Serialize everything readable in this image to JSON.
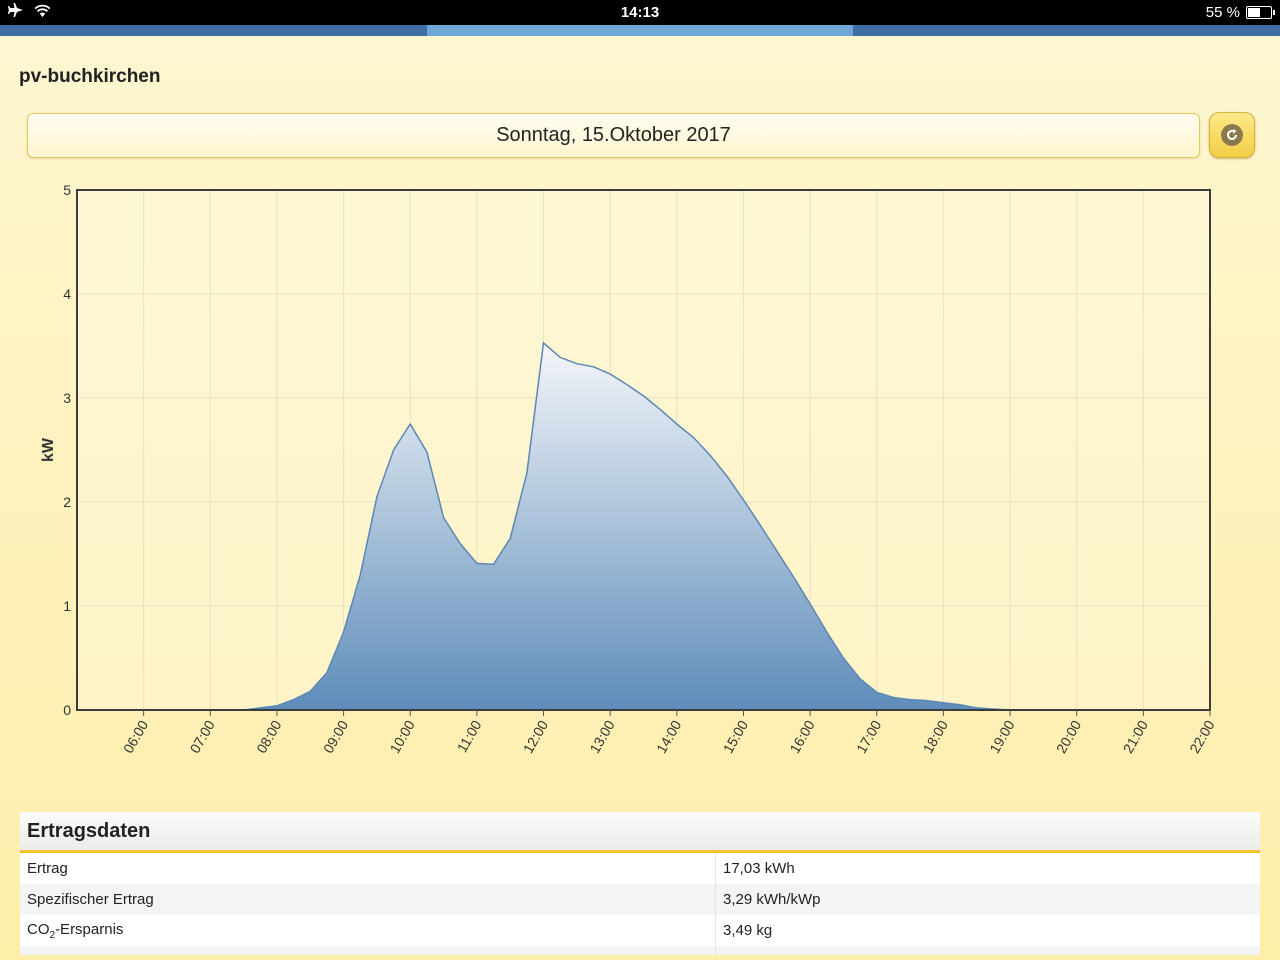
{
  "status_bar": {
    "time": "14:13",
    "battery_text": "55 %",
    "battery_level": 0.55
  },
  "tabs": {
    "count": 3,
    "active_index": 1
  },
  "header": {
    "site_title": "pv-buchkirchen"
  },
  "date_selector": {
    "value": "Sonntag, 15.Oktober 2017"
  },
  "refresh_button": {
    "icon": "refresh-icon"
  },
  "colors": {
    "series_stroke": "#5b87b5",
    "fill_top": "#f4f6f9",
    "fill_bottom": "#5e8cba",
    "accent": "#f2c12e"
  },
  "chart_data": {
    "type": "area",
    "ylabel": "kW",
    "xlabel": "",
    "ylim": [
      0,
      5
    ],
    "y_ticks": [
      "0",
      "1",
      "2",
      "3",
      "4",
      "5"
    ],
    "x_range": [
      "05:00",
      "22:00"
    ],
    "x_ticks": [
      "06:00",
      "07:00",
      "08:00",
      "09:00",
      "10:00",
      "11:00",
      "12:00",
      "13:00",
      "14:00",
      "15:00",
      "16:00",
      "17:00",
      "18:00",
      "19:00",
      "20:00",
      "21:00",
      "22:00"
    ],
    "grid": true,
    "series": [
      {
        "points": [
          [
            "05:00",
            0
          ],
          [
            "07:30",
            0
          ],
          [
            "07:45",
            0.02
          ],
          [
            "08:00",
            0.04
          ],
          [
            "08:15",
            0.1
          ],
          [
            "08:30",
            0.18
          ],
          [
            "08:45",
            0.36
          ],
          [
            "09:00",
            0.75
          ],
          [
            "09:15",
            1.3
          ],
          [
            "09:30",
            2.05
          ],
          [
            "09:45",
            2.5
          ],
          [
            "10:00",
            2.75
          ],
          [
            "10:15",
            2.48
          ],
          [
            "10:30",
            1.85
          ],
          [
            "10:45",
            1.6
          ],
          [
            "11:00",
            1.41
          ],
          [
            "11:15",
            1.4
          ],
          [
            "11:30",
            1.65
          ],
          [
            "11:45",
            2.28
          ],
          [
            "12:00",
            3.53
          ],
          [
            "12:15",
            3.39
          ],
          [
            "12:30",
            3.33
          ],
          [
            "12:45",
            3.3
          ],
          [
            "13:00",
            3.23
          ],
          [
            "13:15",
            3.13
          ],
          [
            "13:30",
            3.02
          ],
          [
            "13:45",
            2.89
          ],
          [
            "14:00",
            2.75
          ],
          [
            "14:15",
            2.62
          ],
          [
            "14:30",
            2.45
          ],
          [
            "14:45",
            2.25
          ],
          [
            "15:00",
            2.02
          ],
          [
            "15:15",
            1.78
          ],
          [
            "15:30",
            1.53
          ],
          [
            "15:45",
            1.28
          ],
          [
            "16:00",
            1.02
          ],
          [
            "16:15",
            0.75
          ],
          [
            "16:30",
            0.5
          ],
          [
            "16:45",
            0.3
          ],
          [
            "17:00",
            0.17
          ],
          [
            "17:15",
            0.12
          ],
          [
            "17:30",
            0.1
          ],
          [
            "17:45",
            0.09
          ],
          [
            "18:00",
            0.07
          ],
          [
            "18:15",
            0.05
          ],
          [
            "18:30",
            0.02
          ],
          [
            "18:45",
            0.01
          ],
          [
            "19:00",
            0
          ],
          [
            "22:00",
            0
          ]
        ]
      }
    ]
  },
  "yield_table": {
    "title": "Ertragsdaten",
    "rows": [
      {
        "label": "Ertrag",
        "value": "17,03 kWh"
      },
      {
        "label": "Spezifischer Ertrag",
        "value": "3,29 kWh/kWp"
      },
      {
        "label_main": "CO",
        "label_sub": "2",
        "label_rest": "-Ersparnis",
        "value": "3,49 kg"
      }
    ]
  }
}
